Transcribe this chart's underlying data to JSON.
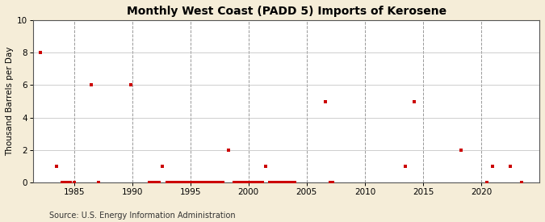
{
  "title": "Monthly West Coast (PADD 5) Imports of Kerosene",
  "ylabel": "Thousand Barrels per Day",
  "source": "Source: U.S. Energy Information Administration",
  "xlim": [
    1981.5,
    2025
  ],
  "ylim": [
    0,
    10
  ],
  "yticks": [
    0,
    2,
    4,
    6,
    8,
    10
  ],
  "xticks": [
    1985,
    1990,
    1995,
    2000,
    2005,
    2010,
    2015,
    2020
  ],
  "fig_bg_color": "#f5edd8",
  "plot_bg_color": "#ffffff",
  "marker_color": "#cc0000",
  "grid_color_h": "#999999",
  "grid_color_v": "#999999",
  "data_points": [
    [
      1982.08,
      8.0
    ],
    [
      1983.5,
      1.0
    ],
    [
      1984.0,
      0.0
    ],
    [
      1984.2,
      0.0
    ],
    [
      1984.5,
      0.0
    ],
    [
      1984.7,
      0.0
    ],
    [
      1985.0,
      0.0
    ],
    [
      1986.5,
      6.0
    ],
    [
      1987.1,
      0.0
    ],
    [
      1989.9,
      6.0
    ],
    [
      1991.5,
      0.0
    ],
    [
      1991.75,
      0.0
    ],
    [
      1992.0,
      0.0
    ],
    [
      1992.1,
      0.0
    ],
    [
      1992.3,
      0.0
    ],
    [
      1992.6,
      1.0
    ],
    [
      1993.0,
      0.0
    ],
    [
      1993.2,
      0.0
    ],
    [
      1993.4,
      0.0
    ],
    [
      1993.6,
      0.0
    ],
    [
      1993.8,
      0.0
    ],
    [
      1994.0,
      0.0
    ],
    [
      1994.2,
      0.0
    ],
    [
      1994.4,
      0.0
    ],
    [
      1994.6,
      0.0
    ],
    [
      1994.8,
      0.0
    ],
    [
      1995.0,
      0.0
    ],
    [
      1995.2,
      0.0
    ],
    [
      1995.4,
      0.0
    ],
    [
      1995.6,
      0.0
    ],
    [
      1995.8,
      0.0
    ],
    [
      1996.0,
      0.0
    ],
    [
      1996.2,
      0.0
    ],
    [
      1996.4,
      0.0
    ],
    [
      1996.6,
      0.0
    ],
    [
      1996.8,
      0.0
    ],
    [
      1997.0,
      0.0
    ],
    [
      1997.2,
      0.0
    ],
    [
      1997.4,
      0.0
    ],
    [
      1997.6,
      0.0
    ],
    [
      1997.8,
      0.0
    ],
    [
      1998.25,
      2.0
    ],
    [
      1998.8,
      0.0
    ],
    [
      1999.0,
      0.0
    ],
    [
      1999.2,
      0.0
    ],
    [
      1999.4,
      0.0
    ],
    [
      1999.6,
      0.0
    ],
    [
      1999.8,
      0.0
    ],
    [
      2000.0,
      0.0
    ],
    [
      2000.2,
      0.0
    ],
    [
      2000.4,
      0.0
    ],
    [
      2000.6,
      0.0
    ],
    [
      2000.8,
      0.0
    ],
    [
      2001.0,
      0.0
    ],
    [
      2001.2,
      0.0
    ],
    [
      2001.5,
      1.0
    ],
    [
      2001.8,
      0.0
    ],
    [
      2002.0,
      0.0
    ],
    [
      2002.2,
      0.0
    ],
    [
      2002.4,
      0.0
    ],
    [
      2002.6,
      0.0
    ],
    [
      2002.8,
      0.0
    ],
    [
      2003.0,
      0.0
    ],
    [
      2003.2,
      0.0
    ],
    [
      2003.4,
      0.0
    ],
    [
      2003.6,
      0.0
    ],
    [
      2003.8,
      0.0
    ],
    [
      2004.0,
      0.0
    ],
    [
      2006.6,
      5.0
    ],
    [
      2007.0,
      0.0
    ],
    [
      2007.2,
      0.0
    ],
    [
      2013.5,
      1.0
    ],
    [
      2014.25,
      5.0
    ],
    [
      2018.25,
      2.0
    ],
    [
      2020.5,
      0.0
    ],
    [
      2021.0,
      1.0
    ],
    [
      2022.5,
      1.0
    ],
    [
      2023.5,
      0.0
    ]
  ]
}
